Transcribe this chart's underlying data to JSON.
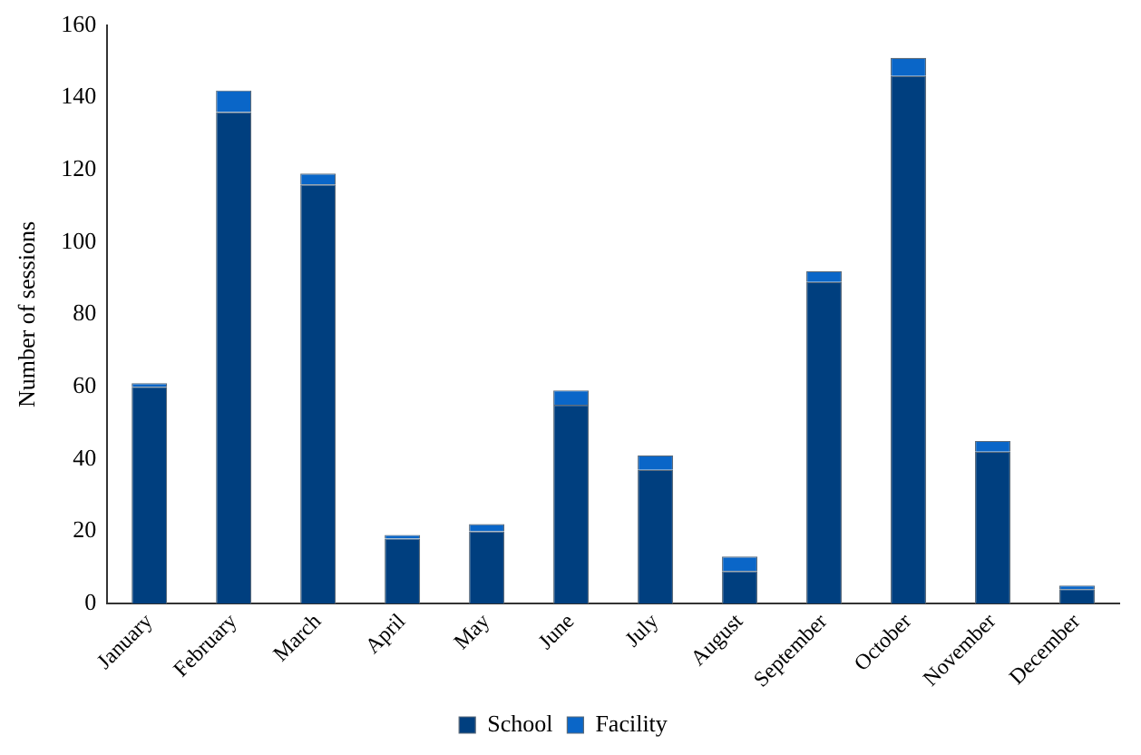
{
  "chart_data": {
    "type": "bar",
    "stacked": true,
    "ylabel": "Number of sessions",
    "categories": [
      "January",
      "February",
      "March",
      "April",
      "May",
      "June",
      "July",
      "August",
      "September",
      "October",
      "November",
      "December"
    ],
    "series": [
      {
        "name": "School",
        "color": "#003f7f",
        "values": [
          60,
          136,
          116,
          18,
          20,
          55,
          37,
          9,
          89,
          146,
          42,
          4
        ]
      },
      {
        "name": "Facility",
        "color": "#0a66c8",
        "values": [
          1,
          6,
          3,
          1,
          2,
          4,
          4,
          4,
          3,
          5,
          3,
          1
        ]
      }
    ],
    "ylim": [
      0,
      160
    ],
    "yticks": [
      0,
      20,
      40,
      60,
      80,
      100,
      120,
      140,
      160
    ],
    "grid": false,
    "legend": "bottom"
  }
}
